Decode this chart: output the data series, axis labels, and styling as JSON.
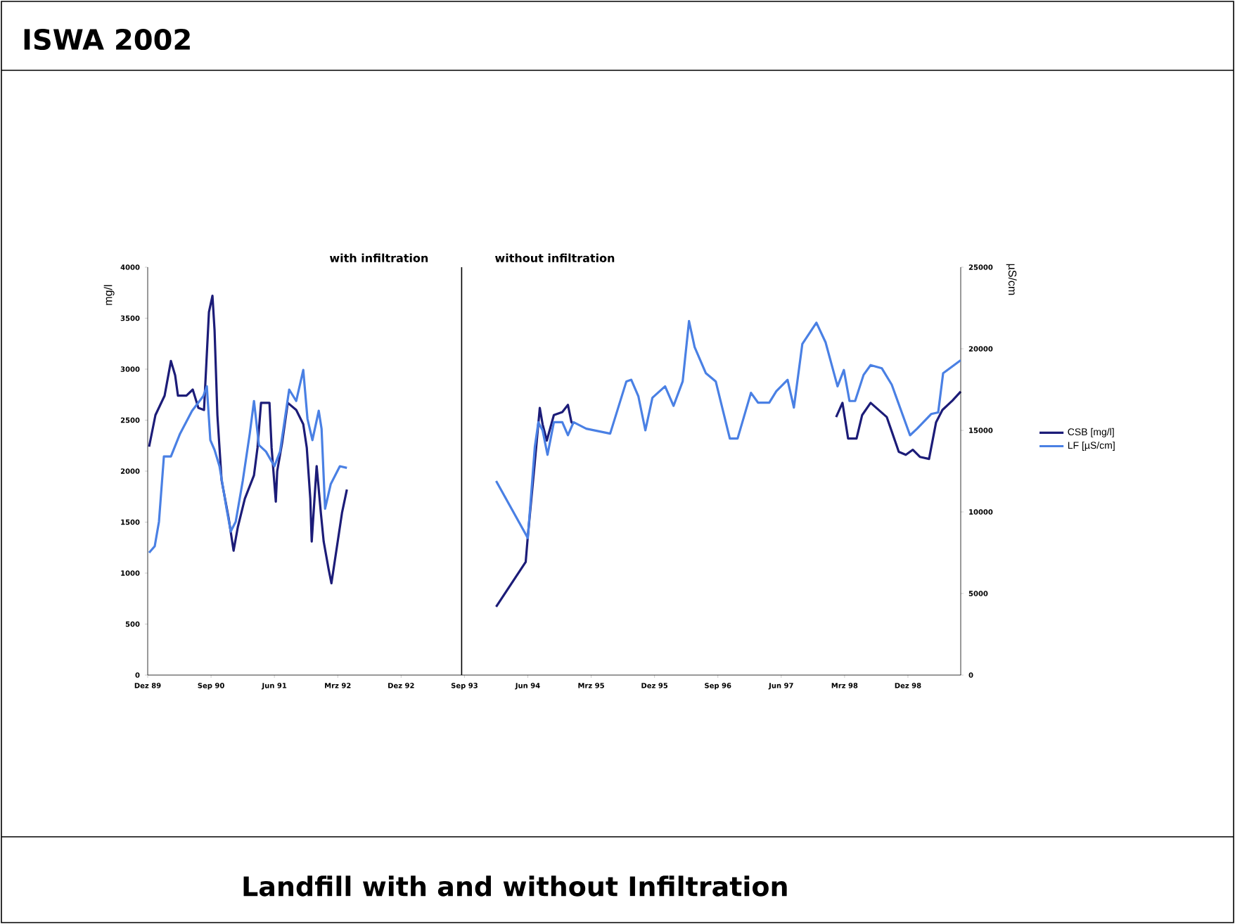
{
  "chart_data": {
    "type": "line",
    "title": "ISWA 2002",
    "subtitle": "Landfill with and without Infiltration",
    "ylabel": "mg/l",
    "y2label": "µS/cm",
    "annotations": [
      "with infiltration",
      "without infiltration"
    ],
    "ref_lines": [
      {
        "axis": "x",
        "value": "1993-08-19",
        "color": "#000000"
      }
    ],
    "xlim": [
      "1989-12-01",
      "1999-07-16"
    ],
    "xticks": [
      {
        "value": "1989-12-01",
        "label": "Dez 89"
      },
      {
        "value": "1990-09-01",
        "label": "Sep 90"
      },
      {
        "value": "1991-06-01",
        "label": "Jun 91"
      },
      {
        "value": "1992-03-01",
        "label": "Mrz 92"
      },
      {
        "value": "1992-12-01",
        "label": "Dez 92"
      },
      {
        "value": "1993-09-01",
        "label": "Sep 93"
      },
      {
        "value": "1994-06-01",
        "label": "Jun 94"
      },
      {
        "value": "1995-03-01",
        "label": "Mrz 95"
      },
      {
        "value": "1995-12-01",
        "label": "Dez 95"
      },
      {
        "value": "1996-09-01",
        "label": "Sep 96"
      },
      {
        "value": "1997-06-01",
        "label": "Jun 97"
      },
      {
        "value": "1998-03-01",
        "label": "Mrz 98"
      },
      {
        "value": "1998-12-01",
        "label": "Dez 98"
      }
    ],
    "ylim": [
      0,
      4000
    ],
    "yticks": [
      0,
      500,
      1000,
      1500,
      2000,
      2500,
      3000,
      3500,
      4000
    ],
    "y2lim": [
      0,
      25000
    ],
    "y2ticks": [
      0,
      5000,
      10000,
      15000,
      20000,
      25000
    ],
    "grid": false,
    "legend": "right",
    "marker": "none",
    "line_style": "solid",
    "series": [
      {
        "name": "CSB [mg/l]",
        "color": "#1c1c78",
        "x": [
          "1989-12-07",
          "1990-01-04",
          "1990-02-13",
          "1990-03-10",
          "1990-03-28",
          "1990-04-10",
          "1990-05-16",
          "1990-06-13",
          "1990-07-07",
          "1990-08-01",
          "1990-08-22",
          "1990-09-07",
          "1990-09-16",
          "1990-09-28",
          "1990-10-16",
          "1990-11-16",
          "1990-12-07",
          "1990-12-25",
          "1991-01-25",
          "1991-03-04",
          "1991-03-19",
          "1991-04-04",
          "1991-05-10",
          "1991-05-19",
          "1991-06-07",
          "1991-06-13",
          "1991-07-04",
          "1991-07-28",
          "1991-09-04",
          "1991-10-04",
          "1991-10-19",
          "1991-11-04",
          "1991-11-10",
          "1991-12-01",
          "1991-12-19",
          "1992-01-01",
          "1992-01-22",
          "1992-02-04",
          "1992-02-25",
          "1992-03-19",
          "1992-04-10",
          "1993-06-01",
          "1994-01-16",
          "1994-05-22",
          "1994-06-01",
          "1994-07-01",
          "1994-07-22",
          "1994-08-04",
          "1994-08-22",
          "1994-09-22",
          "1994-10-28",
          "1994-11-22",
          "1994-12-07",
          "1994-12-16",
          "1996-06-01",
          "1998-01-25",
          "1998-02-22",
          "1998-03-16",
          "1998-04-22",
          "1998-05-16",
          "1998-06-22",
          "1998-09-01",
          "1998-10-22",
          "1998-11-22",
          "1998-12-22",
          "1999-01-22",
          "1999-03-01",
          "1999-04-01",
          "1999-04-28",
          "1999-06-10",
          "1999-07-16"
        ],
        "values": [
          2240,
          2550,
          2740,
          3080,
          2940,
          2740,
          2740,
          2800,
          2620,
          2600,
          3560,
          3720,
          3380,
          2550,
          1910,
          1540,
          1220,
          1450,
          1730,
          1960,
          2230,
          2670,
          2670,
          2230,
          1700,
          2000,
          2280,
          2670,
          2600,
          2460,
          2230,
          1730,
          1310,
          2050,
          1590,
          1310,
          1040,
          900,
          1220,
          1590,
          1820,
          null,
          670,
          1110,
          1360,
          2090,
          2620,
          2460,
          2300,
          2550,
          2580,
          2650,
          2480,
          2460,
          null,
          2530,
          2670,
          2320,
          2320,
          2550,
          2670,
          2530,
          2190,
          2160,
          2210,
          2140,
          2120,
          2480,
          2600,
          2690,
          2780
        ]
      },
      {
        "name": "LF [µS/cm]",
        "color": "#4a80e4",
        "axis": "y2",
        "x": [
          "1989-12-07",
          "1990-01-01",
          "1990-01-19",
          "1990-02-10",
          "1990-03-10",
          "1990-04-19",
          "1990-06-10",
          "1990-07-28",
          "1990-08-13",
          "1990-08-28",
          "1990-09-16",
          "1990-10-07",
          "1990-11-07",
          "1990-11-25",
          "1990-12-16",
          "1991-01-16",
          "1991-02-16",
          "1991-03-04",
          "1991-03-25",
          "1991-04-25",
          "1991-06-01",
          "1991-06-25",
          "1991-08-04",
          "1991-09-04",
          "1991-10-04",
          "1991-10-22",
          "1991-11-13",
          "1991-12-10",
          "1991-12-22",
          "1992-01-07",
          "1992-02-01",
          "1992-03-10",
          "1992-04-10",
          "1993-06-01",
          "1994-01-16",
          "1994-06-01",
          "1994-07-01",
          "1994-07-16",
          "1994-08-04",
          "1994-08-25",
          "1994-09-22",
          "1994-10-28",
          "1994-11-22",
          "1994-12-16",
          "1995-02-10",
          "1995-05-22",
          "1995-08-01",
          "1995-08-22",
          "1995-09-22",
          "1995-10-22",
          "1995-11-22",
          "1996-01-16",
          "1996-02-22",
          "1996-04-01",
          "1996-04-28",
          "1996-05-22",
          "1996-07-10",
          "1996-08-22",
          "1996-10-22",
          "1996-11-25",
          "1997-01-22",
          "1997-02-22",
          "1997-04-10",
          "1997-05-10",
          "1997-06-28",
          "1997-07-25",
          "1997-09-01",
          "1997-11-01",
          "1997-12-10",
          "1998-02-01",
          "1998-02-28",
          "1998-03-22",
          "1998-04-16",
          "1998-05-22",
          "1998-06-22",
          "1998-08-10",
          "1998-09-22",
          "1998-12-10",
          "1999-01-10",
          "1999-03-10",
          "1999-04-10",
          "1999-05-01",
          "1999-07-16"
        ],
        "values": [
          7500,
          7900,
          9400,
          13400,
          13400,
          14800,
          16200,
          17100,
          17700,
          14400,
          13800,
          12800,
          10200,
          8800,
          9400,
          11900,
          14800,
          16800,
          14100,
          13700,
          12800,
          13700,
          17500,
          16800,
          18700,
          15700,
          14400,
          16200,
          15100,
          10200,
          11700,
          12800,
          12700,
          null,
          11900,
          8400,
          14000,
          15500,
          15000,
          13500,
          15500,
          15500,
          14700,
          15500,
          15100,
          14800,
          18000,
          18100,
          17100,
          15000,
          17000,
          17700,
          16500,
          18000,
          21700,
          20100,
          18500,
          18000,
          14500,
          14500,
          17300,
          16700,
          16700,
          17400,
          18100,
          16400,
          20300,
          21600,
          20400,
          17700,
          18700,
          16800,
          16800,
          18400,
          19000,
          18800,
          17800,
          14700,
          15100,
          16000,
          16100,
          18500,
          19300
        ]
      }
    ]
  }
}
